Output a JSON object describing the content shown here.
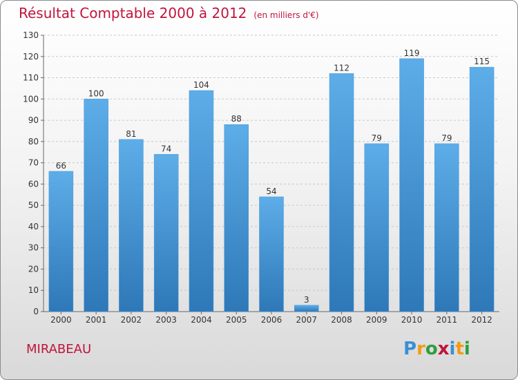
{
  "title": "Résultat Comptable 2000 à 2012",
  "subtitle": "(en milliers d'€)",
  "commune": "MIRABEAU",
  "logo": {
    "text": "Proxiti",
    "colors": [
      "#3a8fd6",
      "#f39c12",
      "#2e9e3f",
      "#c0143c",
      "#3a8fd6",
      "#f39c12",
      "#2e9e3f"
    ]
  },
  "colors": {
    "title": "#c0143c",
    "bar_top": "#5dade8",
    "bar_bottom": "#2e78b8"
  },
  "chart_data": {
    "type": "bar",
    "categories": [
      "2000",
      "2001",
      "2002",
      "2003",
      "2004",
      "2005",
      "2006",
      "2007",
      "2008",
      "2009",
      "2010",
      "2011",
      "2012"
    ],
    "values": [
      66,
      100,
      81,
      74,
      104,
      88,
      54,
      3,
      112,
      79,
      119,
      79,
      115
    ],
    "title": "Résultat Comptable 2000 à 2012",
    "xlabel": "",
    "ylabel": "",
    "ylim": [
      0,
      130
    ],
    "yticks": [
      0,
      10,
      20,
      30,
      40,
      50,
      60,
      70,
      80,
      90,
      100,
      110,
      120,
      130
    ],
    "grid": true,
    "data_labels": true
  }
}
